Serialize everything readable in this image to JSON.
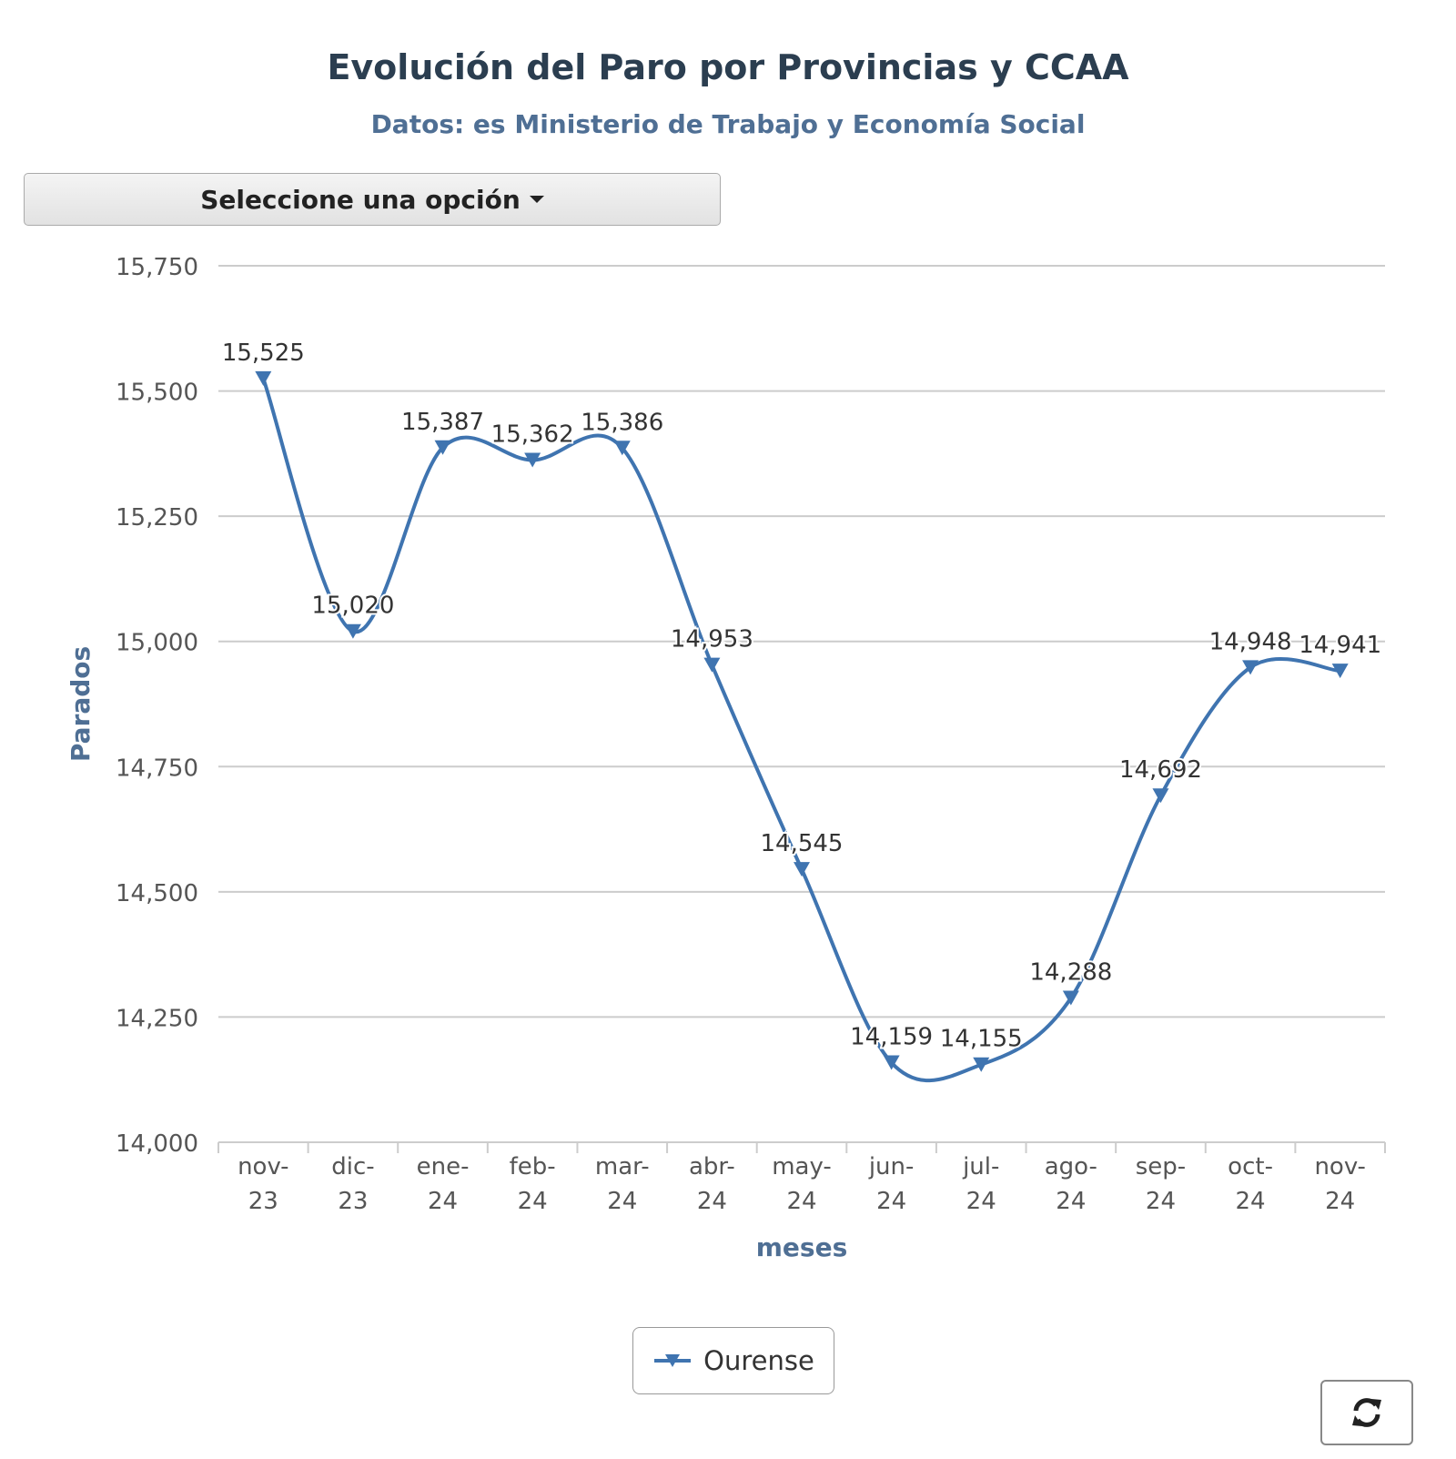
{
  "header": {
    "title": "Evolución del Paro por Provincias y CCAA",
    "subtitle": "Datos: es Ministerio de Trabajo y Economía Social"
  },
  "selector": {
    "label": "Seleccione una opción"
  },
  "refresh_icon": "refresh-icon",
  "chart_data": {
    "type": "line",
    "title": "Evolución del Paro por Provincias y CCAA",
    "subtitle": "Datos: es Ministerio de Trabajo y Economía Social",
    "xlabel": "meses",
    "ylabel": "Parados",
    "categories": [
      [
        "nov-",
        "23"
      ],
      [
        "dic-",
        "23"
      ],
      [
        "ene-",
        "24"
      ],
      [
        "feb-",
        "24"
      ],
      [
        "mar-",
        "24"
      ],
      [
        "abr-",
        "24"
      ],
      [
        "may-",
        "24"
      ],
      [
        "jun-",
        "24"
      ],
      [
        "jul-",
        "24"
      ],
      [
        "ago-",
        "24"
      ],
      [
        "sep-",
        "24"
      ],
      [
        "oct-",
        "24"
      ],
      [
        "nov-",
        "24"
      ]
    ],
    "ylim": [
      14000,
      15750
    ],
    "yticks": [
      14000,
      14250,
      14500,
      14750,
      15000,
      15250,
      15500,
      15750
    ],
    "ytick_labels": [
      "14,000",
      "14,250",
      "14,500",
      "14,750",
      "15,000",
      "15,250",
      "15,500",
      "15,750"
    ],
    "grid": true,
    "legend": "bottom-center",
    "series": [
      {
        "name": "Ourense",
        "color": "#3f74b0",
        "marker": "triangle-down",
        "values": [
          15525,
          15020,
          15387,
          15362,
          15386,
          14953,
          14545,
          14159,
          14155,
          14288,
          14692,
          14948,
          14941
        ],
        "labels": [
          "15,525",
          "15,020",
          "15,387",
          "15,362",
          "15,386",
          "14,953",
          "14,545",
          "14,159",
          "14,155",
          "14,288",
          "14,692",
          "14,948",
          "14,941"
        ]
      }
    ]
  }
}
